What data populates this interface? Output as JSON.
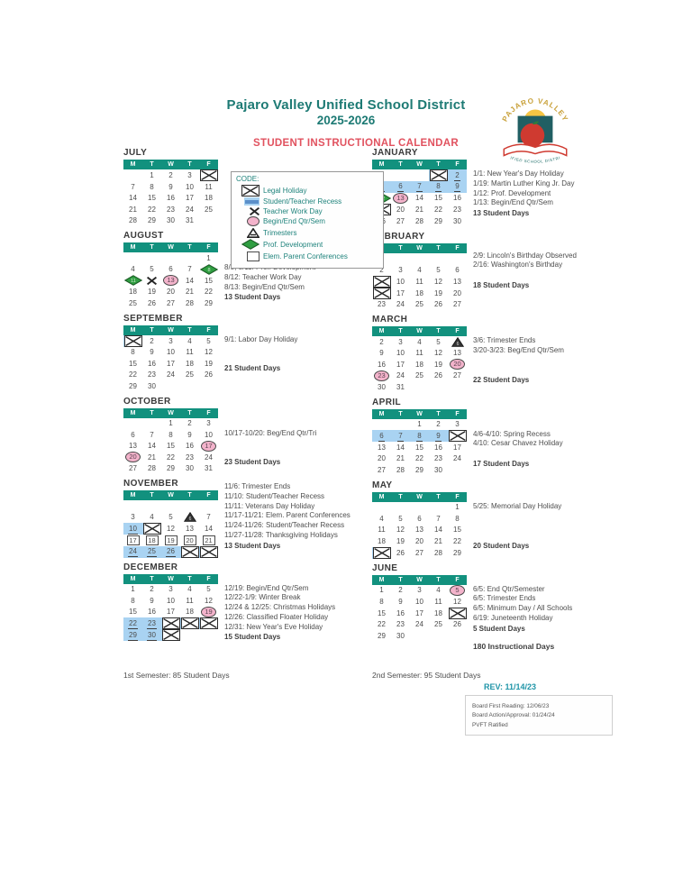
{
  "header": {
    "district": "Pajaro Valley Unified School District",
    "year": "2025-2026",
    "calendar_title": "STUDENT INSTRUCTIONAL CALENDAR",
    "logo": {
      "top": "PAJARO VALLEY",
      "bottom": "UNIFIED SCHOOL DISTRICT"
    }
  },
  "legend": {
    "title": "CODE:",
    "items": [
      {
        "marker": "L",
        "label": "Legal Holiday"
      },
      {
        "marker": "R",
        "label": "Student/Teacher Recess"
      },
      {
        "marker": "W",
        "label": "Teacher Work Day"
      },
      {
        "marker": "Q",
        "label": "Begin/End Qtr/Sem"
      },
      {
        "marker": "T",
        "label": "Trimesters"
      },
      {
        "marker": "P",
        "label": "Prof. Development"
      },
      {
        "marker": "C",
        "label": "Elem. Parent Conferences"
      }
    ]
  },
  "weekday_headers": [
    "M",
    "T",
    "W",
    "T",
    "F"
  ],
  "months": [
    {
      "name": "JULY",
      "column": "left",
      "weeks": [
        [
          "",
          "1",
          "2",
          "3",
          "4|L"
        ],
        [
          "7",
          "8",
          "9",
          "10",
          "11"
        ],
        [
          "14",
          "15",
          "16",
          "17",
          "18"
        ],
        [
          "21",
          "22",
          "23",
          "24",
          "25"
        ],
        [
          "28",
          "29",
          "30",
          "31",
          ""
        ]
      ],
      "notes": [],
      "student_days": ""
    },
    {
      "name": "AUGUST",
      "column": "left",
      "weeks": [
        [
          "",
          "",
          "",
          "",
          "1"
        ],
        [
          "4",
          "5",
          "6",
          "7",
          "8|P"
        ],
        [
          "11|P",
          "12|W",
          "13|Q",
          "14",
          "15"
        ],
        [
          "18",
          "19",
          "20",
          "21",
          "22"
        ],
        [
          "25",
          "26",
          "27",
          "28",
          "29"
        ]
      ],
      "notes": [
        "8/8, 8/11: Prof. Development",
        "8/12: Teacher Work Day",
        "8/13: Begin/End Qtr/Sem"
      ],
      "student_days": "13 Student Days"
    },
    {
      "name": "SEPTEMBER",
      "column": "left",
      "weeks": [
        [
          "1|LR",
          "2",
          "3",
          "4",
          "5"
        ],
        [
          "8",
          "9",
          "10",
          "11",
          "12"
        ],
        [
          "15",
          "16",
          "17",
          "18",
          "19"
        ],
        [
          "22",
          "23",
          "24",
          "25",
          "26"
        ],
        [
          "29",
          "30",
          "",
          "",
          ""
        ]
      ],
      "notes": [
        "9/1: Labor Day Holiday"
      ],
      "student_days": "21 Student Days"
    },
    {
      "name": "OCTOBER",
      "column": "left",
      "weeks": [
        [
          "",
          "",
          "1",
          "2",
          "3"
        ],
        [
          "6",
          "7",
          "8",
          "9",
          "10"
        ],
        [
          "13",
          "14",
          "15",
          "16",
          "17|Q"
        ],
        [
          "20|Q",
          "21",
          "22",
          "23",
          "24"
        ],
        [
          "27",
          "28",
          "29",
          "30",
          "31"
        ]
      ],
      "notes": [
        "10/17-10/20: Beg/End Qtr/Tri"
      ],
      "student_days": "23 Student Days"
    },
    {
      "name": "NOVEMBER",
      "column": "left",
      "weeks": [
        [
          "",
          "",
          "",
          "",
          ""
        ],
        [
          "3",
          "4",
          "5",
          "6|T",
          "7"
        ],
        [
          "10|R",
          "11|LR",
          "12",
          "13",
          "14"
        ],
        [
          "17|C",
          "18|C",
          "19|C",
          "20|C",
          "21|C"
        ],
        [
          "24|R",
          "25|R",
          "26|R",
          "27|LR",
          "28|LR"
        ]
      ],
      "notes": [
        "11/6: Trimester Ends",
        "11/10: Student/Teacher Recess",
        "11/11: Veterans Day Holiday",
        "11/17-11/21: Elem. Parent Conferences",
        "11/24-11/26: Student/Teacher Recess",
        "11/27-11/28: Thanksgiving Holidays"
      ],
      "student_days": "13 Student Days"
    },
    {
      "name": "DECEMBER",
      "column": "left",
      "weeks": [
        [
          "1",
          "2",
          "3",
          "4",
          "5"
        ],
        [
          "8",
          "9",
          "10",
          "11",
          "12"
        ],
        [
          "15",
          "16",
          "17",
          "18",
          "19|Q"
        ],
        [
          "22|R",
          "23|R",
          "24|LR",
          "25|LR",
          "26|LR"
        ],
        [
          "29|R",
          "30|R",
          "31|LR",
          "",
          ""
        ]
      ],
      "notes": [
        "12/19: Begin/End Qtr/Sem",
        "12/22-1/9: Winter Break",
        "12/24 & 12/25: Christmas Holidays",
        "12/26: Classified Floater Holiday",
        "12/31: New Year's Eve Holiday"
      ],
      "student_days": "15 Student Days"
    },
    {
      "name": "JANUARY",
      "column": "right",
      "weeks": [
        [
          "",
          "",
          "",
          "1|LR",
          "2|R"
        ],
        [
          "5|R",
          "6|R",
          "7|R",
          "8|R",
          "9|R"
        ],
        [
          "12|P",
          "13|Q",
          "14",
          "15",
          "16"
        ],
        [
          "19|L",
          "20",
          "21",
          "22",
          "23"
        ],
        [
          "26",
          "27",
          "28",
          "29",
          "30"
        ]
      ],
      "notes": [
        "1/1: New Year's Day Holiday",
        "1/19: Martin Luther King Jr. Day",
        "1/12: Prof. Development",
        "1/13: Begin/End Qtr/Sem"
      ],
      "student_days": "13 Student Days"
    },
    {
      "name": "FEBRUARY",
      "column": "right",
      "weeks": [
        [
          "",
          "",
          "",
          "",
          ""
        ],
        [
          "2",
          "3",
          "4",
          "5",
          "6"
        ],
        [
          "9|L",
          "10",
          "11",
          "12",
          "13"
        ],
        [
          "16|L",
          "17",
          "18",
          "19",
          "20"
        ],
        [
          "23",
          "24",
          "25",
          "26",
          "27"
        ]
      ],
      "notes": [
        "2/9: Lincoln's Birthday Observed",
        "2/16: Washington's Birthday"
      ],
      "student_days": "18 Student Days"
    },
    {
      "name": "MARCH",
      "column": "right",
      "weeks": [
        [
          "2",
          "3",
          "4",
          "5",
          "6|T"
        ],
        [
          "9",
          "10",
          "11",
          "12",
          "13"
        ],
        [
          "16",
          "17",
          "18",
          "19",
          "20|Q"
        ],
        [
          "23|Q",
          "24",
          "25",
          "26",
          "27"
        ],
        [
          "30",
          "31",
          "",
          "",
          ""
        ]
      ],
      "notes": [
        "3/6: Trimester Ends",
        "3/20-3/23: Beg/End Qtr/Sem"
      ],
      "student_days": "22 Student Days"
    },
    {
      "name": "APRIL",
      "column": "right",
      "weeks": [
        [
          "",
          "",
          "1",
          "2",
          "3"
        ],
        [
          "6|R",
          "7|R",
          "8|R",
          "9|R",
          "10|LR"
        ],
        [
          "13",
          "14",
          "15",
          "16",
          "17"
        ],
        [
          "20",
          "21",
          "22",
          "23",
          "24"
        ],
        [
          "27",
          "28",
          "29",
          "30",
          ""
        ]
      ],
      "notes": [
        "4/6-4/10: Spring Recess",
        "4/10: Cesar Chavez Holiday"
      ],
      "student_days": "17 Student Days"
    },
    {
      "name": "MAY",
      "column": "right",
      "weeks": [
        [
          "",
          "",
          "",
          "",
          "1"
        ],
        [
          "4",
          "5",
          "6",
          "7",
          "8"
        ],
        [
          "11",
          "12",
          "13",
          "14",
          "15"
        ],
        [
          "18",
          "19",
          "20",
          "21",
          "22"
        ],
        [
          "25|LR",
          "26",
          "27",
          "28",
          "29"
        ]
      ],
      "notes": [
        "5/25: Memorial Day Holiday"
      ],
      "student_days": "20 Student Days"
    },
    {
      "name": "JUNE",
      "column": "right",
      "weeks": [
        [
          "1",
          "2",
          "3",
          "4",
          "5|Q"
        ],
        [
          "8",
          "9",
          "10",
          "11",
          "12"
        ],
        [
          "15",
          "16",
          "17",
          "18",
          "19|L"
        ],
        [
          "22",
          "23",
          "24",
          "25",
          "26"
        ],
        [
          "29",
          "30",
          "",
          "",
          ""
        ]
      ],
      "notes": [
        "6/5: End Qtr/Semester",
        "6/5: Trimester Ends",
        "6/5: Minimum Day / All Schools",
        "6/19: Juneteenth Holiday"
      ],
      "student_days": "5 Student Days"
    }
  ],
  "footer": {
    "total": "180 Instructional Days",
    "sem1": "1st Semester: 85 Student Days",
    "sem2": "2nd Semester: 95 Student Days",
    "rev": "REV: 11/14/23",
    "board_box": [
      "Board First Reading: 12/06/23",
      "Board Action/Approval: 01/24/24",
      "PVFT Ratified"
    ]
  },
  "colors": {
    "teal_header": "#12917e",
    "teal_text": "#1d7a74",
    "red_title": "#e1525f",
    "recess_blue": "#a9d3f2",
    "qtr_pink": "#f3b3cb",
    "pd_green": "#2f9e41",
    "rev_teal": "#2095a8"
  }
}
